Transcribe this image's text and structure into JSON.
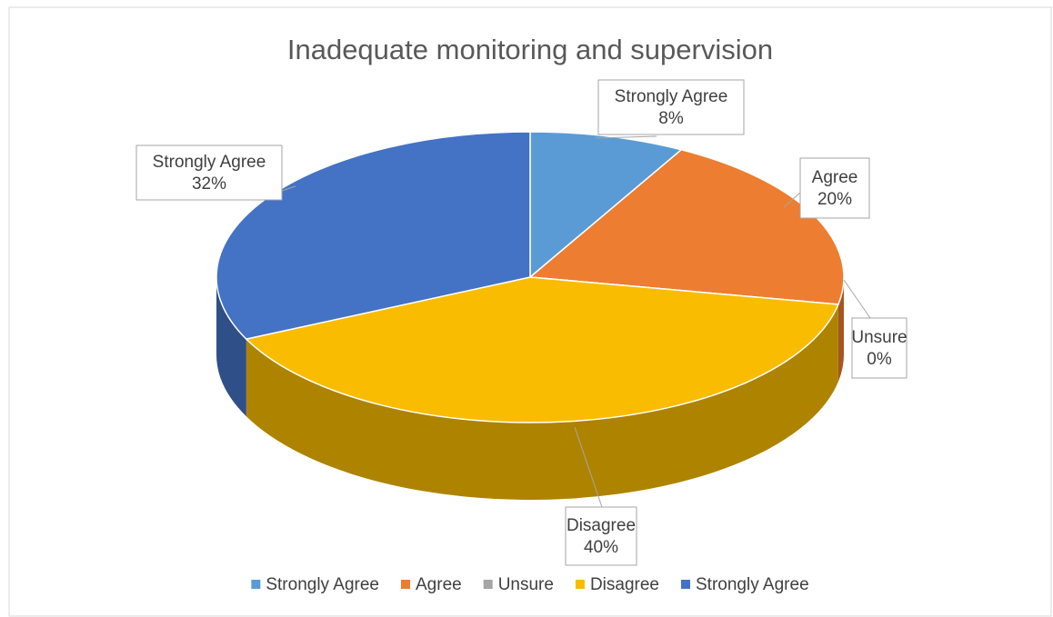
{
  "chart_data": {
    "type": "pie",
    "title": "Inadequate monitoring and supervision",
    "categories": [
      "Strongly Agree",
      "Agree",
      "Unsure",
      "Disagree",
      "Strongly Agree"
    ],
    "values": [
      8,
      20,
      0,
      40,
      32
    ],
    "value_labels": [
      "8%",
      "20%",
      "0%",
      "40%",
      "32%"
    ],
    "colors": [
      "#5b9bd5",
      "#ed7d31",
      "#a5a5a5",
      "#f9bc00",
      "#4472c4"
    ],
    "legend": "bottom"
  }
}
